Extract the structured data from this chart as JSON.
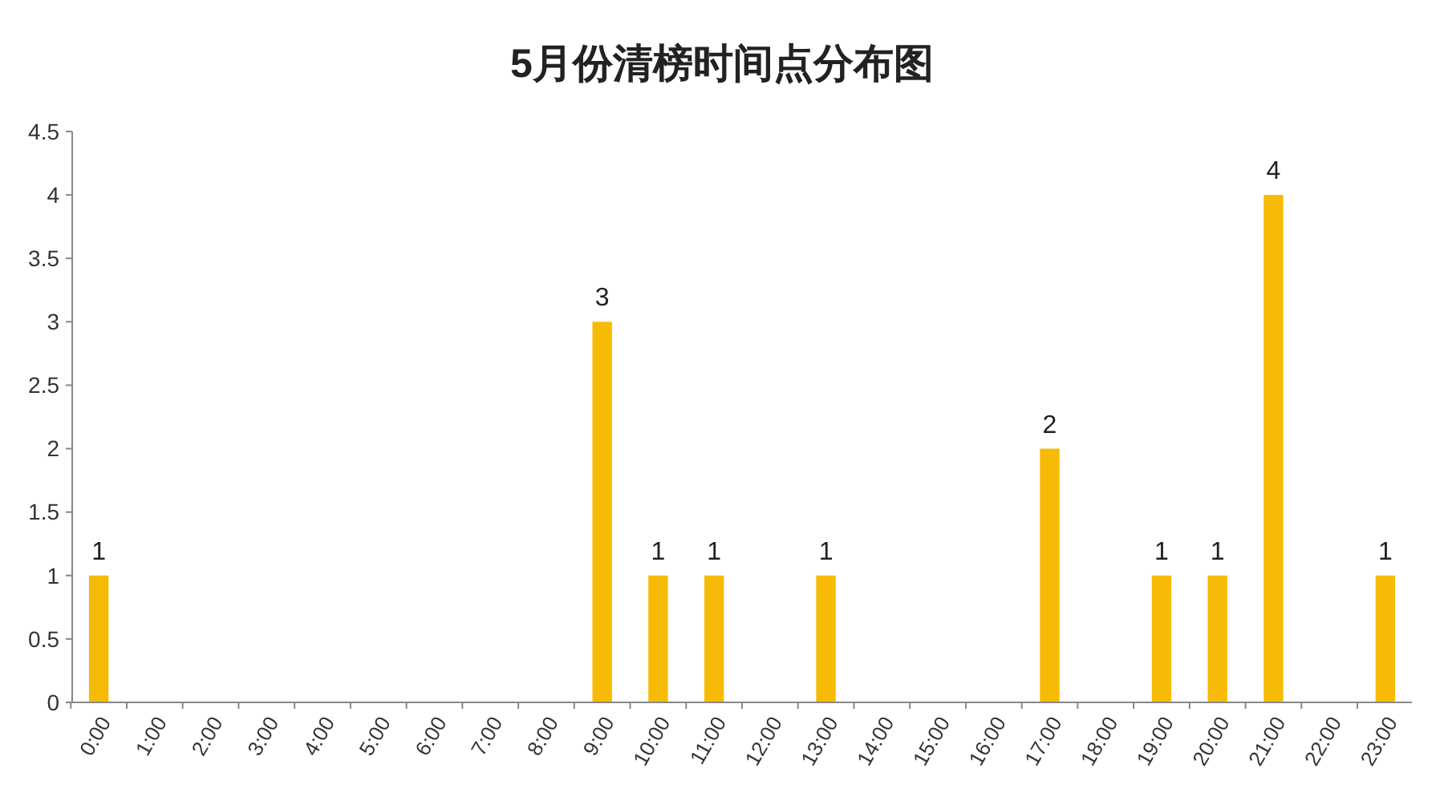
{
  "chart_data": {
    "type": "bar",
    "title": "5月份清榜时间点分布图",
    "categories": [
      "0:00",
      "1:00",
      "2:00",
      "3:00",
      "4:00",
      "5:00",
      "6:00",
      "7:00",
      "8:00",
      "9:00",
      "10:00",
      "11:00",
      "12:00",
      "13:00",
      "14:00",
      "15:00",
      "16:00",
      "17:00",
      "18:00",
      "19:00",
      "20:00",
      "21:00",
      "22:00",
      "23:00"
    ],
    "values": [
      1,
      0,
      0,
      0,
      0,
      0,
      0,
      0,
      0,
      3,
      1,
      1,
      0,
      1,
      0,
      0,
      0,
      2,
      0,
      1,
      1,
      4,
      0,
      1
    ],
    "value_labels": [
      "1",
      null,
      null,
      null,
      null,
      null,
      null,
      null,
      null,
      "3",
      "1",
      "1",
      null,
      "1",
      null,
      null,
      null,
      "2",
      null,
      "1",
      "1",
      "4",
      null,
      "1"
    ],
    "color": "#f7bb07",
    "ylim": [
      0,
      4.5
    ],
    "yticks": [
      0,
      0.5,
      1,
      1.5,
      2,
      2.5,
      3,
      3.5,
      4,
      4.5
    ],
    "grid": false
  }
}
